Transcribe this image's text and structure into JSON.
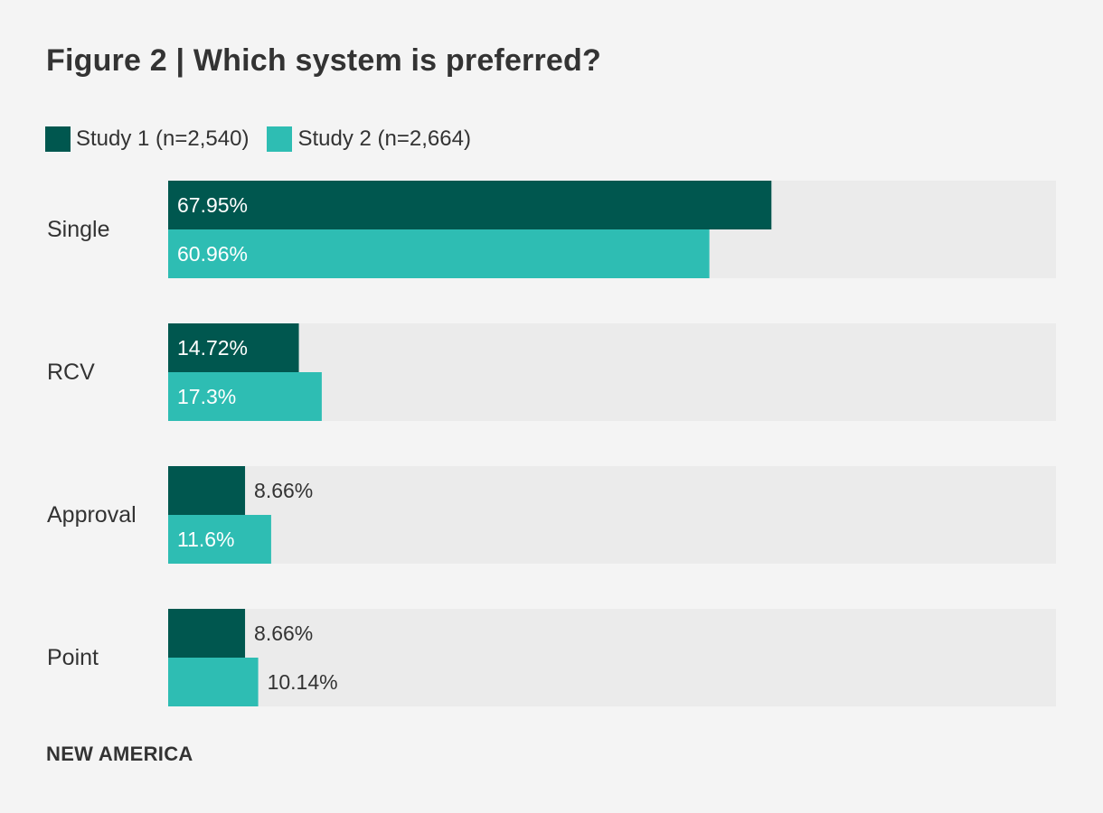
{
  "title": "Figure 2 | Which system is preferred?",
  "footer": "NEW AMERICA",
  "colors": {
    "study1": "#00574f",
    "study2": "#2ebdb3",
    "track": "#ebebeb",
    "background": "#f4f4f4",
    "text": "#333333",
    "label_inside": "#ffffff"
  },
  "legend": [
    {
      "label": "Study 1 (n=2,540)",
      "color": "#00574f"
    },
    {
      "label": "Study 2 (n=2,664)",
      "color": "#2ebdb3"
    }
  ],
  "chart_data": {
    "type": "bar",
    "orientation": "horizontal",
    "categories": [
      "Single",
      "RCV",
      "Approval",
      "Point"
    ],
    "series": [
      {
        "name": "Study 1 (n=2,540)",
        "values": [
          67.95,
          14.72,
          8.66,
          8.66
        ],
        "labels": [
          "67.95%",
          "14.72%",
          "8.66%",
          "8.66%"
        ]
      },
      {
        "name": "Study 2 (n=2,664)",
        "values": [
          60.96,
          17.3,
          11.6,
          10.14
        ],
        "labels": [
          "60.96%",
          "17.3%",
          "11.6%",
          "10.14%"
        ]
      }
    ],
    "xlim": [
      0,
      100
    ],
    "grid": false,
    "legend_position": "top-left"
  }
}
